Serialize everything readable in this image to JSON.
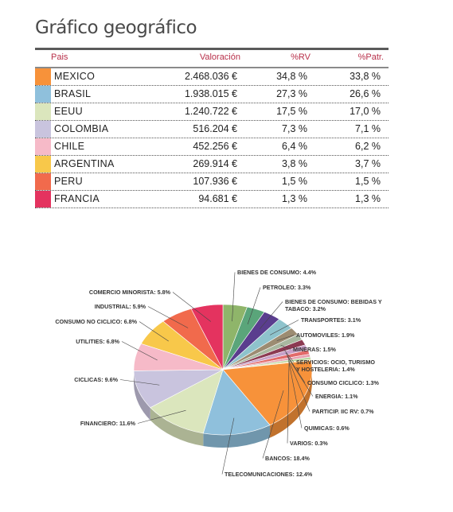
{
  "title": "Gráfico geográfico",
  "table": {
    "headers": {
      "pais": "Pais",
      "valoracion": "Valoración",
      "rv": "%RV",
      "patr": "%Patr."
    },
    "rows": [
      {
        "pais": "MEXICO",
        "valoracion": "2.468.036 €",
        "rv": "34,8 %",
        "patr": "33,8 %",
        "color": "#f7923a"
      },
      {
        "pais": "BRASIL",
        "valoracion": "1.938.015 €",
        "rv": "27,3 %",
        "patr": "26,6 %",
        "color": "#8fc0dc"
      },
      {
        "pais": "EEUU",
        "valoracion": "1.240.722 €",
        "rv": "17,5 %",
        "patr": "17,0 %",
        "color": "#dbe6bd"
      },
      {
        "pais": "COLOMBIA",
        "valoracion": "516.204 €",
        "rv": "7,3 %",
        "patr": "7,1 %",
        "color": "#c9c4de"
      },
      {
        "pais": "CHILE",
        "valoracion": "452.256 €",
        "rv": "6,4 %",
        "patr": "6,2 %",
        "color": "#f6bac8"
      },
      {
        "pais": "ARGENTINA",
        "valoracion": "269.914 €",
        "rv": "3,8 %",
        "patr": "3,7 %",
        "color": "#f8c84a"
      },
      {
        "pais": "PERU",
        "valoracion": "107.936 €",
        "rv": "1,5 %",
        "patr": "1,5 %",
        "color": "#f16a4c"
      },
      {
        "pais": "FRANCIA",
        "valoracion": "94.681 €",
        "rv": "1,3 %",
        "patr": "1,3 %",
        "color": "#e4335f"
      }
    ]
  },
  "chart_data": {
    "type": "pie",
    "title": "",
    "series": [
      {
        "name": "BIENES DE CONSUMO",
        "value": 4.4,
        "label": "BIENES DE CONSUMO: 4.4%",
        "color": "#8fb56a"
      },
      {
        "name": "PETROLEO",
        "value": 3.3,
        "label": "PETROLEO: 3.3%",
        "color": "#5aa57a"
      },
      {
        "name": "BIENES DE CONSUMO: BEBIDAS Y TABACO",
        "value": 3.2,
        "label": "BIENES DE CONSUMO: BEBIDAS Y TABACO: 3.2%",
        "color": "#5a3d8e"
      },
      {
        "name": "TRANSPORTES",
        "value": 3.1,
        "label": "TRANSPORTES: 3.1%",
        "color": "#8ec3cc"
      },
      {
        "name": "AUTOMOVILES",
        "value": 1.9,
        "label": "AUTOMOVILES: 1.9%",
        "color": "#9c8c72"
      },
      {
        "name": "MINERAS",
        "value": 1.5,
        "label": "MINERAS: 1.5%",
        "color": "#a9b8a0"
      },
      {
        "name": "SERVICIOS: OCIO, TURISMO Y HOSTELERIA",
        "value": 1.4,
        "label": "SERVICIOS: OCIO, TURISMO Y HOSTELERIA: 1.4%",
        "color": "#8c3a52"
      },
      {
        "name": "CONSUMO CICLICO",
        "value": 1.3,
        "label": "CONSUMO CICLICO: 1.3%",
        "color": "#c8a0c8"
      },
      {
        "name": "ENERGIA",
        "value": 1.1,
        "label": "ENERGIA: 1.1%",
        "color": "#e26a6a"
      },
      {
        "name": "PARTICIP. IIC RV",
        "value": 0.7,
        "label": "PARTICIP. IIC RV: 0.7%",
        "color": "#e8a0b0"
      },
      {
        "name": "QUIMICAS",
        "value": 0.6,
        "label": "QUIMICAS: 0.6%",
        "color": "#b6d6a0"
      },
      {
        "name": "VARIOS",
        "value": 0.3,
        "label": "VARIOS: 0.3%",
        "color": "#f2d070"
      },
      {
        "name": "BANCOS",
        "value": 18.4,
        "label": "BANCOS: 18.4%",
        "color": "#f7923a"
      },
      {
        "name": "TELECOMUNICACIONES",
        "value": 12.4,
        "label": "TELECOMUNICACIONES: 12.4%",
        "color": "#8fc0dc"
      },
      {
        "name": "FINANCIERO",
        "value": 11.6,
        "label": "FINANCIERO: 11.6%",
        "color": "#dbe6bd"
      },
      {
        "name": "CICLICAS",
        "value": 9.6,
        "label": "CICLICAS: 9.6%",
        "color": "#c9c4de"
      },
      {
        "name": "UTILITIES",
        "value": 6.8,
        "label": "UTILITIES: 6.8%",
        "color": "#f6bac8"
      },
      {
        "name": "CONSUMO NO CICLICO",
        "value": 6.8,
        "label": "CONSUMO NO CICLICO: 6.8%",
        "color": "#f8c84a"
      },
      {
        "name": "INDUSTRIAL",
        "value": 5.9,
        "label": "INDUSTRIAL: 5.9%",
        "color": "#f16a4c"
      },
      {
        "name": "COMERCIO MINORISTA",
        "value": 5.8,
        "label": "COMERCIO MINORISTA: 5.8%",
        "color": "#e4335f"
      }
    ]
  }
}
